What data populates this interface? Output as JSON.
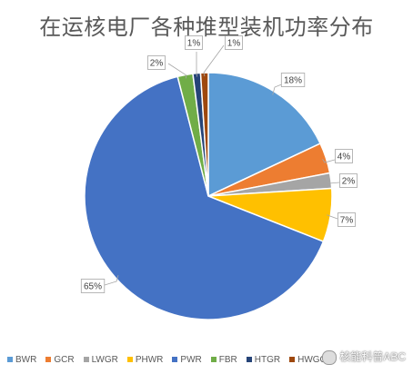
{
  "chart_data": {
    "type": "pie",
    "title": "在运核电厂各种堆型装机功率分布",
    "categories": [
      "BWR",
      "GCR",
      "LWGR",
      "PHWR",
      "PWR",
      "FBR",
      "HTGR",
      "HWGCR"
    ],
    "values": [
      18,
      4,
      2,
      7,
      65,
      2,
      1,
      1
    ],
    "labels": [
      "18%",
      "4%",
      "2%",
      "7%",
      "65%",
      "2%",
      "1%",
      "1%"
    ],
    "colors": [
      "#5b9bd5",
      "#ed7d31",
      "#a5a5a5",
      "#ffc000",
      "#4472c4",
      "#70ad47",
      "#264478",
      "#9e480e"
    ],
    "legend_position": "bottom"
  },
  "watermark": {
    "text": "核能科普ABC",
    "icon": "wechat-icon"
  }
}
